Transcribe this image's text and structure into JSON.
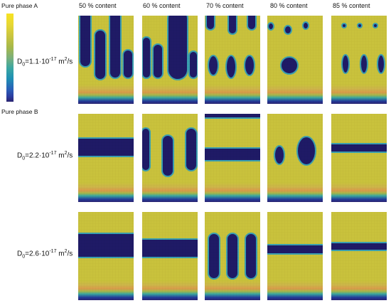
{
  "legend": {
    "top_label": "Pure phase A",
    "bottom_label": "Pure phase B"
  },
  "columns": [
    "50 % content",
    "60 % content",
    "70 % content",
    "80 % content",
    "85 % content"
  ],
  "rows": [
    {
      "d_prefix": "D",
      "d_sub": "0",
      "d_mid": "=1.1·10",
      "d_exp": "-17",
      "d_unit": " m",
      "d_unit_exp": "2",
      "d_tail": "/s"
    },
    {
      "d_prefix": "D",
      "d_sub": "0",
      "d_mid": "=2.2·10",
      "d_exp": "-17",
      "d_unit": " m",
      "d_unit_exp": "2",
      "d_tail": "/s"
    },
    {
      "d_prefix": "D",
      "d_sub": "0",
      "d_mid": "=2.6·10",
      "d_exp": "-17",
      "d_unit": " m",
      "d_unit_exp": "2",
      "d_tail": "/s"
    }
  ],
  "colors": {
    "phase_a": "#c9c23c",
    "phase_b": "#1f1a66",
    "interface": "#3a9fb0",
    "band_orange": "#d99b4a",
    "band_teal": "#3aa6a0",
    "band_blue": "#233a9a"
  }
}
